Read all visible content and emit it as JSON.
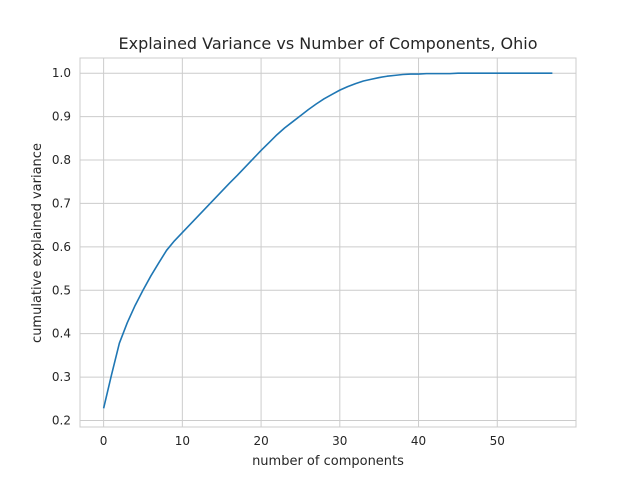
{
  "chart_data": {
    "type": "line",
    "title": "Explained Variance vs Number of Components, Ohio",
    "xlabel": "number of components",
    "ylabel": "cumulative explained variance",
    "xlim": [
      -3,
      60
    ],
    "ylim": [
      0.185,
      1.035
    ],
    "x_ticks": [
      0,
      10,
      20,
      30,
      40,
      50
    ],
    "y_ticks": [
      0.2,
      0.3,
      0.4,
      0.5,
      0.6,
      0.7,
      0.8,
      0.9,
      1.0
    ],
    "x_tick_labels": [
      "0",
      "10",
      "20",
      "30",
      "40",
      "50"
    ],
    "y_tick_labels": [
      "0.2",
      "0.3",
      "0.4",
      "0.5",
      "0.6",
      "0.7",
      "0.8",
      "0.9",
      "1.0"
    ],
    "grid": true,
    "line_color": "#1f77b4",
    "grid_color": "#cccccc",
    "series": [
      {
        "x": [
          0,
          1,
          2,
          3,
          4,
          5,
          6,
          7,
          8,
          9,
          10,
          11,
          12,
          13,
          14,
          15,
          16,
          17,
          18,
          19,
          20,
          21,
          22,
          23,
          24,
          25,
          26,
          27,
          28,
          29,
          30,
          31,
          32,
          33,
          34,
          35,
          36,
          37,
          38,
          39,
          40,
          41,
          42,
          43,
          44,
          45,
          46,
          47,
          48,
          49,
          50,
          51,
          52,
          53,
          54,
          55,
          56,
          57
        ],
        "y": [
          0.228,
          0.305,
          0.378,
          0.425,
          0.465,
          0.5,
          0.533,
          0.563,
          0.592,
          0.614,
          0.633,
          0.652,
          0.671,
          0.69,
          0.709,
          0.728,
          0.747,
          0.765,
          0.784,
          0.803,
          0.822,
          0.84,
          0.858,
          0.874,
          0.888,
          0.902,
          0.916,
          0.929,
          0.941,
          0.951,
          0.961,
          0.969,
          0.976,
          0.982,
          0.986,
          0.99,
          0.993,
          0.995,
          0.997,
          0.998,
          0.998,
          0.999,
          0.999,
          0.999,
          0.999,
          1.0,
          1.0,
          1.0,
          1.0,
          1.0,
          1.0,
          1.0,
          1.0,
          1.0,
          1.0,
          1.0,
          1.0,
          1.0
        ]
      }
    ]
  }
}
